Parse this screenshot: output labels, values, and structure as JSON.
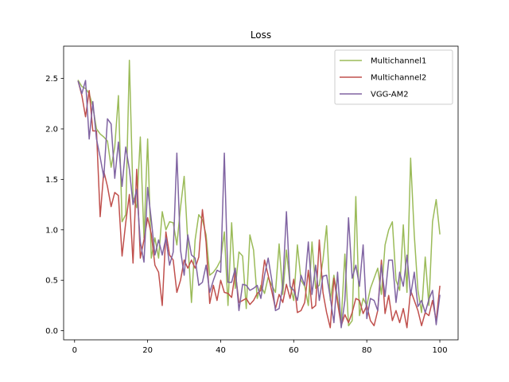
{
  "chart_data": {
    "type": "line",
    "title": "Loss",
    "xlabel": "",
    "ylabel": "",
    "xlim": [
      -3,
      105
    ],
    "ylim": [
      -0.09,
      2.82
    ],
    "x_ticks": [
      0,
      20,
      40,
      60,
      80,
      100
    ],
    "y_ticks": [
      0.0,
      0.5,
      1.0,
      1.5,
      2.0,
      2.5
    ],
    "x_tick_labels": [
      "0",
      "20",
      "40",
      "60",
      "80",
      "100"
    ],
    "y_tick_labels": [
      "0.0",
      "0.5",
      "1.0",
      "1.5",
      "2.0",
      "2.5"
    ],
    "grid": false,
    "legend_position": "top-right",
    "x": [
      1,
      2,
      3,
      4,
      5,
      6,
      7,
      8,
      9,
      10,
      11,
      12,
      13,
      14,
      15,
      16,
      17,
      18,
      19,
      20,
      21,
      22,
      23,
      24,
      25,
      26,
      27,
      28,
      29,
      30,
      31,
      32,
      33,
      34,
      35,
      36,
      37,
      38,
      39,
      40,
      41,
      42,
      43,
      44,
      45,
      46,
      47,
      48,
      49,
      50,
      51,
      52,
      53,
      54,
      55,
      56,
      57,
      58,
      59,
      60,
      61,
      62,
      63,
      64,
      65,
      66,
      67,
      68,
      69,
      70,
      71,
      72,
      73,
      74,
      75,
      76,
      77,
      78,
      79,
      80,
      81,
      82,
      83,
      84,
      85,
      86,
      87,
      88,
      89,
      90,
      91,
      92,
      93,
      94,
      95,
      96,
      97,
      98,
      99,
      100
    ],
    "series": [
      {
        "name": "Multichannel1",
        "color": "#9bbb59",
        "values": [
          2.48,
          2.42,
          2.4,
          2.35,
          2.22,
          2.0,
          1.95,
          1.92,
          1.88,
          1.62,
          1.82,
          2.33,
          1.08,
          1.15,
          2.68,
          1.32,
          1.22,
          1.92,
          0.92,
          1.9,
          0.72,
          0.92,
          0.72,
          1.18,
          1.0,
          1.08,
          1.07,
          0.85,
          1.22,
          1.53,
          0.88,
          0.28,
          0.9,
          1.15,
          1.1,
          0.95,
          0.55,
          0.58,
          0.63,
          0.7,
          0.98,
          0.25,
          1.07,
          0.42,
          0.78,
          0.74,
          0.22,
          0.95,
          0.8,
          0.32,
          0.45,
          0.37,
          0.53,
          0.45,
          0.38,
          0.86,
          0.36,
          0.8,
          0.45,
          0.3,
          0.85,
          0.5,
          0.44,
          0.25,
          0.88,
          0.42,
          0.45,
          0.7,
          1.04,
          0.3,
          0.55,
          0.32,
          0.1,
          0.76,
          0.05,
          0.1,
          1.33,
          0.15,
          0.32,
          0.25,
          0.42,
          0.52,
          0.62,
          0.36,
          0.85,
          1.0,
          1.08,
          0.5,
          0.4,
          1.05,
          0.38,
          1.71,
          0.95,
          0.4,
          0.18,
          0.73,
          0.25,
          1.08,
          1.3,
          0.96
        ]
      },
      {
        "name": "Multichannel2",
        "color": "#c0504d",
        "values": [
          2.47,
          2.33,
          2.12,
          2.38,
          1.98,
          1.98,
          1.13,
          1.58,
          1.43,
          1.23,
          1.37,
          1.34,
          0.74,
          1.07,
          1.35,
          0.67,
          1.6,
          0.72,
          0.9,
          1.12,
          0.96,
          0.65,
          0.58,
          0.25,
          0.98,
          0.75,
          0.7,
          0.38,
          0.5,
          0.7,
          0.62,
          0.7,
          0.62,
          0.73,
          1.2,
          0.88,
          0.27,
          0.45,
          0.3,
          0.5,
          0.38,
          0.37,
          0.33,
          0.58,
          0.28,
          0.3,
          0.32,
          0.26,
          0.3,
          0.37,
          0.4,
          0.7,
          0.55,
          0.39,
          0.22,
          0.36,
          0.28,
          0.46,
          0.32,
          0.51,
          0.18,
          0.2,
          0.28,
          0.6,
          0.22,
          0.25,
          0.9,
          0.38,
          0.18,
          0.03,
          0.52,
          0.28,
          0.05,
          0.16,
          0.08,
          0.18,
          0.32,
          0.3,
          0.17,
          0.25,
          0.1,
          0.05,
          0.2,
          0.7,
          0.17,
          0.35,
          0.1,
          0.2,
          0.08,
          0.22,
          0.03,
          0.4,
          0.3,
          0.2,
          0.05,
          0.18,
          0.15,
          0.3,
          0.1,
          0.44
        ]
      },
      {
        "name": "VGG-AM2",
        "color": "#8064a2",
        "values": [
          2.47,
          2.35,
          2.48,
          1.9,
          2.27,
          1.9,
          1.72,
          1.52,
          2.1,
          2.05,
          1.51,
          1.87,
          1.43,
          1.82,
          1.6,
          1.25,
          1.4,
          0.88,
          0.68,
          1.42,
          1.1,
          0.75,
          0.9,
          0.75,
          0.92,
          0.65,
          0.78,
          1.76,
          0.8,
          0.55,
          0.95,
          0.75,
          0.72,
          0.45,
          0.48,
          0.65,
          0.38,
          0.5,
          0.6,
          0.58,
          1.76,
          0.48,
          0.48,
          0.62,
          0.2,
          0.46,
          0.45,
          0.4,
          0.42,
          0.45,
          0.32,
          0.55,
          0.72,
          0.5,
          0.2,
          0.22,
          0.45,
          1.18,
          0.44,
          0.4,
          0.3,
          0.55,
          0.45,
          0.88,
          0.36,
          0.65,
          0.3,
          0.54,
          0.55,
          0.33,
          0.08,
          0.58,
          0.03,
          0.3,
          1.12,
          0.52,
          0.65,
          0.44,
          0.85,
          0.12,
          0.32,
          0.3,
          0.2,
          0.65,
          0.34,
          0.7,
          0.7,
          0.28,
          0.58,
          0.44,
          0.75,
          0.35,
          0.58,
          0.24,
          0.3,
          0.18,
          0.31,
          0.4,
          0.06,
          0.35
        ]
      }
    ]
  }
}
